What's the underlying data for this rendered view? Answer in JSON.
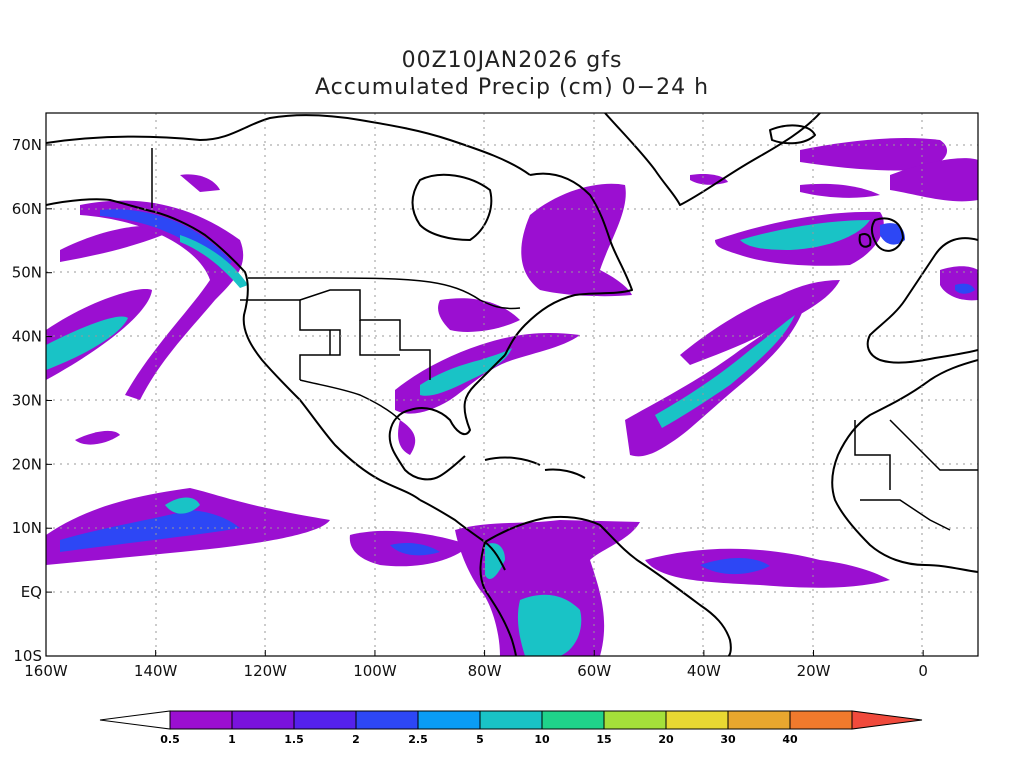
{
  "title_line1": "00Z10JAN2026 gfs",
  "title_line2": "Accumulated Precip (cm) 0−24 h",
  "map": {
    "lon_range": [
      -160,
      10
    ],
    "lat_range": [
      -10,
      75
    ],
    "x_ticks": [
      {
        "lon": -160,
        "label": "160W"
      },
      {
        "lon": -140,
        "label": "140W"
      },
      {
        "lon": -120,
        "label": "120W"
      },
      {
        "lon": -100,
        "label": "100W"
      },
      {
        "lon": -80,
        "label": "80W"
      },
      {
        "lon": -60,
        "label": "60W"
      },
      {
        "lon": -40,
        "label": "40W"
      },
      {
        "lon": -20,
        "label": "20W"
      },
      {
        "lon": 0,
        "label": "0"
      }
    ],
    "y_ticks": [
      {
        "lat": 70,
        "label": "70N"
      },
      {
        "lat": 60,
        "label": "60N"
      },
      {
        "lat": 50,
        "label": "50N"
      },
      {
        "lat": 40,
        "label": "40N"
      },
      {
        "lat": 30,
        "label": "30N"
      },
      {
        "lat": 20,
        "label": "20N"
      },
      {
        "lat": 10,
        "label": "10N"
      },
      {
        "lat": 0,
        "label": "EQ"
      },
      {
        "lat": -10,
        "label": "10S"
      }
    ],
    "grid": true
  },
  "colorbar": {
    "levels": [
      "0.5",
      "1",
      "1.5",
      "2",
      "2.5",
      "5",
      "10",
      "15",
      "20",
      "30",
      "40"
    ],
    "colors": [
      "#9b0fd1",
      "#7a12dc",
      "#5521ec",
      "#2d47f5",
      "#0a9cf5",
      "#19c3c6",
      "#1fd38a",
      "#a4e03a",
      "#e8d832",
      "#e8a72e",
      "#f07a2c",
      "#f04a3c"
    ]
  }
}
